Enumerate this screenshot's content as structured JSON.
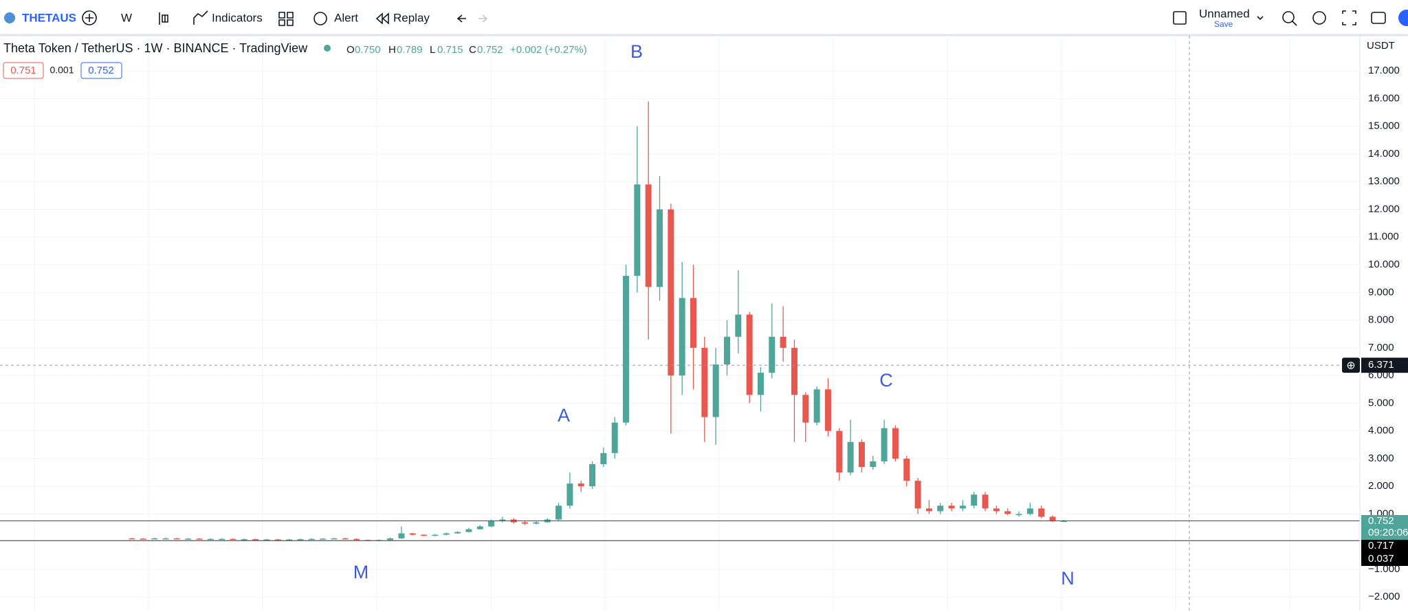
{
  "toolbar": {
    "symbol": "THETAUS",
    "interval": "W",
    "indicators": "Indicators",
    "alert": "Alert",
    "replay": "Replay",
    "layout_name": "Unnamed",
    "save": "Save"
  },
  "legend": {
    "title": "Theta Token / TetherUS · 1W · BINANCE · TradingView",
    "o_label": "O",
    "o": "0.750",
    "h_label": "H",
    "h": "0.789",
    "l_label": "L",
    "l": "0.715",
    "c_label": "C",
    "c": "0.752",
    "change": "+0.002 (+0.27%)",
    "bid": "0.751",
    "spread": "0.001",
    "ask": "0.752"
  },
  "annotations": [
    "A",
    "B",
    "C",
    "M",
    "N"
  ],
  "axis_unit": "USDT",
  "crosshair": {
    "value": 6.371,
    "label": "6.371"
  },
  "price_labels": {
    "last": {
      "value": 0.752,
      "label": "0.752"
    },
    "countdown": "09:20:06",
    "low_line": {
      "value": 0.037,
      "label": "0.037"
    },
    "other": "0.717"
  },
  "chart_data": {
    "type": "candlestick",
    "up_color": "#4fa59a",
    "down_color": "#e8584f",
    "open": [
      0.12,
      0.11,
      0.1,
      0.12,
      0.12,
      0.11,
      0.11,
      0.1,
      0.1,
      0.1,
      0.09,
      0.09,
      0.08,
      0.08,
      0.07,
      0.08,
      0.09,
      0.1,
      0.11,
      0.12,
      0.1,
      0.06,
      0.05,
      0.06,
      0.12,
      0.3,
      0.25,
      0.22,
      0.25,
      0.3,
      0.35,
      0.45,
      0.55,
      0.75,
      0.8,
      0.7,
      0.65,
      0.7,
      0.8,
      1.3,
      2.1,
      2.0,
      2.8,
      3.2,
      4.3,
      9.6,
      12.9,
      9.2,
      12,
      6,
      8.8,
      7,
      4.5,
      6.4,
      7.4,
      8.2,
      5.3,
      6.1,
      7.4,
      7,
      5.3,
      4.3,
      5.5,
      4,
      2.5,
      3.6,
      2.7,
      2.9,
      4.1,
      3,
      2.2,
      1.2,
      1.1,
      1.3,
      1.2,
      1.3,
      1.7,
      1.2,
      1.1,
      1.0,
      1.0,
      1.2,
      0.9,
      0.75
    ],
    "high": [
      0.14,
      0.13,
      0.14,
      0.15,
      0.14,
      0.13,
      0.13,
      0.12,
      0.12,
      0.12,
      0.11,
      0.11,
      0.1,
      0.1,
      0.1,
      0.11,
      0.12,
      0.13,
      0.14,
      0.14,
      0.12,
      0.08,
      0.08,
      0.15,
      0.55,
      0.32,
      0.27,
      0.28,
      0.33,
      0.38,
      0.5,
      0.6,
      0.8,
      0.9,
      0.85,
      0.75,
      0.75,
      0.85,
      1.4,
      2.5,
      2.2,
      2.9,
      3.4,
      4.5,
      10,
      15,
      15.9,
      13.2,
      12.2,
      10.1,
      10,
      7.4,
      7,
      8,
      9.8,
      8.3,
      6.3,
      8.6,
      8.5,
      7.3,
      5.4,
      5.6,
      5.9,
      4.1,
      4.4,
      3.7,
      3.1,
      4.4,
      4.2,
      3.1,
      2.3,
      1.5,
      1.4,
      1.4,
      1.5,
      1.8,
      1.8,
      1.3,
      1.2,
      1.1,
      1.4,
      1.3,
      0.95,
      0.789
    ],
    "low": [
      0.09,
      0.08,
      0.08,
      0.1,
      0.09,
      0.09,
      0.08,
      0.08,
      0.08,
      0.07,
      0.07,
      0.06,
      0.06,
      0.05,
      0.05,
      0.07,
      0.08,
      0.09,
      0.1,
      0.08,
      0.04,
      0.03,
      0.04,
      0.05,
      0.1,
      0.22,
      0.2,
      0.2,
      0.23,
      0.28,
      0.33,
      0.43,
      0.52,
      0.7,
      0.65,
      0.6,
      0.62,
      0.68,
      0.75,
      1.2,
      1.8,
      1.9,
      2.7,
      3.0,
      4.2,
      9.0,
      7.3,
      8.7,
      3.9,
      5.3,
      5.5,
      3.6,
      3.5,
      6.0,
      6.8,
      5.0,
      4.7,
      5.9,
      6.5,
      3.6,
      3.6,
      4.2,
      3.8,
      2.2,
      2.4,
      2.5,
      2.6,
      2.8,
      2.9,
      2.0,
      1.0,
      1.0,
      1.0,
      1.1,
      1.1,
      1.2,
      1.1,
      1.0,
      0.95,
      0.9,
      0.95,
      0.85,
      0.7,
      0.715
    ],
    "close": [
      0.11,
      0.1,
      0.12,
      0.12,
      0.11,
      0.11,
      0.1,
      0.1,
      0.1,
      0.09,
      0.09,
      0.08,
      0.08,
      0.07,
      0.08,
      0.09,
      0.1,
      0.11,
      0.12,
      0.1,
      0.06,
      0.05,
      0.06,
      0.12,
      0.3,
      0.25,
      0.22,
      0.25,
      0.3,
      0.35,
      0.45,
      0.55,
      0.75,
      0.8,
      0.7,
      0.65,
      0.7,
      0.8,
      1.3,
      2.1,
      2.0,
      2.8,
      3.2,
      4.3,
      9.6,
      12.9,
      9.2,
      12,
      6,
      8.8,
      7,
      4.5,
      6.4,
      7.4,
      8.2,
      5.3,
      6.1,
      7.4,
      7,
      5.3,
      4.3,
      5.5,
      4,
      2.5,
      3.6,
      2.7,
      2.9,
      4.1,
      3,
      2.2,
      1.2,
      1.1,
      1.3,
      1.2,
      1.3,
      1.7,
      1.2,
      1.1,
      1.0,
      1.0,
      1.2,
      0.9,
      0.75,
      0.752
    ],
    "ylim": [
      -2.49,
      18.27
    ],
    "yticks": [
      {
        "value": 17,
        "label": "17.000"
      },
      {
        "value": 16,
        "label": "16.000"
      },
      {
        "value": 15,
        "label": "15.000"
      },
      {
        "value": 14,
        "label": "14.000"
      },
      {
        "value": 13,
        "label": "13.000"
      },
      {
        "value": 12,
        "label": "12.000"
      },
      {
        "value": 11,
        "label": "11.000"
      },
      {
        "value": 10,
        "label": "10.000"
      },
      {
        "value": 9,
        "label": "9.000"
      },
      {
        "value": 8,
        "label": "8.000"
      },
      {
        "value": 7,
        "label": "7.000"
      },
      {
        "value": 6,
        "label": "6.000"
      },
      {
        "value": 5,
        "label": "5.000"
      },
      {
        "value": 4,
        "label": "4.000"
      },
      {
        "value": 3,
        "label": "3.000"
      },
      {
        "value": 2,
        "label": "2.000"
      },
      {
        "value": 1,
        "label": "1.000"
      },
      {
        "value": -1,
        "label": "−1.000"
      },
      {
        "value": -2,
        "label": "−2.000"
      }
    ],
    "grid": true
  }
}
